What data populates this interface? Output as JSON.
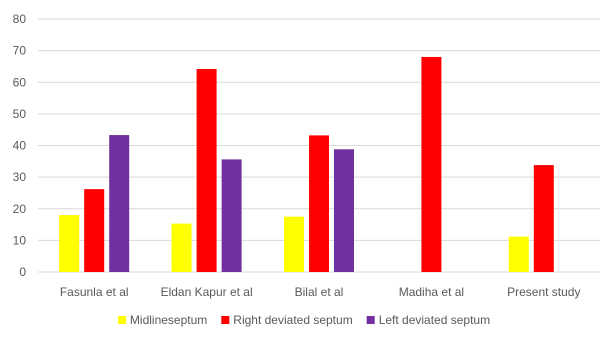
{
  "chart_data": {
    "type": "bar",
    "categories": [
      "Fasunla et al",
      "Eldan Kapur et al",
      "Bilal et al",
      "Madiha et al",
      "Present study"
    ],
    "series": [
      {
        "name": "Midlineseptum",
        "color": "#ffff00",
        "values": [
          18,
          15.3,
          17.5,
          null,
          11.2
        ]
      },
      {
        "name": "Right deviated septum",
        "color": "#ff0000",
        "values": [
          26.2,
          64.2,
          43.2,
          68,
          33.8
        ]
      },
      {
        "name": "Left deviated septum",
        "color": "#7030a0",
        "values": [
          43.3,
          35.6,
          38.8,
          null,
          null
        ]
      }
    ],
    "ylim": [
      0,
      80
    ],
    "yticks": [
      0,
      10,
      20,
      30,
      40,
      50,
      60,
      70,
      80
    ],
    "grid": true,
    "legend_position": "bottom",
    "gridline_color": "#d9d9d9"
  }
}
